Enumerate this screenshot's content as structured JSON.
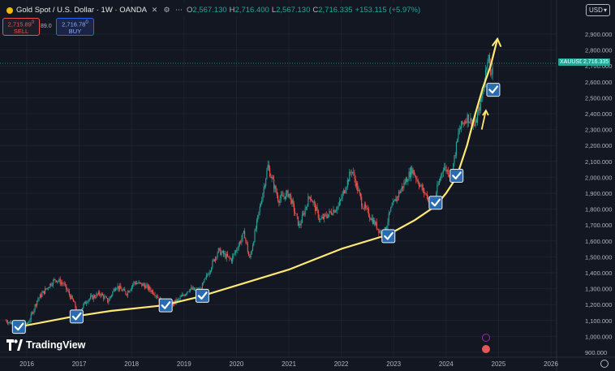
{
  "header": {
    "symbol_title": "Gold Spot / U.S. Dollar · 1W · OANDA",
    "open_label": "O",
    "open_value": "2,567.130",
    "high_label": "H",
    "high_value": "2,716.400",
    "low_label": "L",
    "low_value": "2,567.130",
    "close_label": "C",
    "close_value": "2,716.335",
    "change_value": "+153.115 (+5.97%)"
  },
  "trade": {
    "sell_price": "2,715.89",
    "sell_sup": "0",
    "sell_label": "SELL",
    "spread": "89.0",
    "buy_price": "2,716.78",
    "buy_sup": "0",
    "buy_label": "BUY"
  },
  "currency_button": "USD",
  "last_price": "2,716.335",
  "symbol_tag": "XAUUSD",
  "logo_text": "TradingView",
  "colors": {
    "background": "#131722",
    "up": "#26a69a",
    "down": "#ef5350",
    "trendline": "#ffe873",
    "checkbox": "#2b6cb0"
  },
  "chart_data": {
    "type": "candlestick",
    "interval": "1W",
    "ylim": [
      880,
      2920
    ],
    "y_ticks": [
      900,
      1000,
      1100,
      1200,
      1300,
      1400,
      1500,
      1600,
      1700,
      1800,
      1900,
      2000,
      2100,
      2200,
      2300,
      2400,
      2500,
      2600,
      2700,
      2800,
      2900
    ],
    "y_tick_labels": [
      "900.000",
      "1,000.000",
      "1,100.000",
      "1,200.000",
      "1,300.000",
      "1,400.000",
      "1,500.000",
      "1,600.000",
      "1,700.000",
      "1,800.000",
      "1,900.000",
      "2,000.000",
      "2,100.000",
      "2,200.000",
      "2,300.000",
      "2,400.000",
      "2,500.000",
      "2,600.000",
      "2,700.000",
      "2,800.000",
      "2,900.000"
    ],
    "x_ticks": [
      "2016",
      "2017",
      "2018",
      "2019",
      "2020",
      "2021",
      "2022",
      "2023",
      "2024",
      "2025",
      "2026"
    ],
    "xlim": [
      2015.6,
      2026.8
    ],
    "price_path": [
      [
        2015.6,
        1100
      ],
      [
        2015.8,
        1070
      ],
      [
        2015.95,
        1055
      ],
      [
        2016.05,
        1100
      ],
      [
        2016.2,
        1230
      ],
      [
        2016.45,
        1330
      ],
      [
        2016.55,
        1360
      ],
      [
        2016.7,
        1330
      ],
      [
        2016.9,
        1210
      ],
      [
        2016.97,
        1140
      ],
      [
        2017.15,
        1230
      ],
      [
        2017.4,
        1270
      ],
      [
        2017.55,
        1220
      ],
      [
        2017.7,
        1320
      ],
      [
        2017.9,
        1270
      ],
      [
        2018.05,
        1340
      ],
      [
        2018.25,
        1320
      ],
      [
        2018.45,
        1270
      ],
      [
        2018.65,
        1180
      ],
      [
        2018.9,
        1230
      ],
      [
        2019.1,
        1300
      ],
      [
        2019.3,
        1280
      ],
      [
        2019.45,
        1390
      ],
      [
        2019.65,
        1540
      ],
      [
        2019.9,
        1480
      ],
      [
        2020.15,
        1650
      ],
      [
        2020.25,
        1480
      ],
      [
        2020.4,
        1730
      ],
      [
        2020.6,
        2070
      ],
      [
        2020.8,
        1860
      ],
      [
        2021.0,
        1900
      ],
      [
        2021.2,
        1690
      ],
      [
        2021.4,
        1890
      ],
      [
        2021.6,
        1730
      ],
      [
        2021.8,
        1780
      ],
      [
        2021.95,
        1820
      ],
      [
        2022.2,
        2050
      ],
      [
        2022.4,
        1830
      ],
      [
        2022.6,
        1730
      ],
      [
        2022.8,
        1630
      ],
      [
        2022.95,
        1800
      ],
      [
        2023.1,
        1900
      ],
      [
        2023.35,
        2050
      ],
      [
        2023.55,
        1920
      ],
      [
        2023.75,
        1830
      ],
      [
        2023.95,
        2070
      ],
      [
        2024.1,
        2010
      ],
      [
        2024.25,
        2300
      ],
      [
        2024.4,
        2380
      ],
      [
        2024.55,
        2320
      ],
      [
        2024.7,
        2530
      ],
      [
        2024.8,
        2780
      ],
      [
        2024.85,
        2650
      ],
      [
        2024.9,
        2716
      ]
    ],
    "trendline": [
      [
        2015.85,
        1060
      ],
      [
        2016.8,
        1120
      ],
      [
        2017.6,
        1160
      ],
      [
        2018.6,
        1195
      ],
      [
        2019.3,
        1250
      ],
      [
        2020.0,
        1320
      ],
      [
        2021.0,
        1420
      ],
      [
        2022.0,
        1550
      ],
      [
        2022.9,
        1640
      ],
      [
        2023.4,
        1730
      ],
      [
        2023.8,
        1820
      ],
      [
        2024.0,
        1900
      ],
      [
        2024.2,
        2000
      ],
      [
        2024.4,
        2200
      ],
      [
        2024.55,
        2390
      ],
      [
        2024.7,
        2560
      ],
      [
        2024.85,
        2700
      ],
      [
        2024.98,
        2870
      ]
    ],
    "trendline_arrow_small": [
      [
        2024.68,
        2300
      ],
      [
        2024.76,
        2420
      ]
    ],
    "checkmarks": [
      [
        2015.85,
        1060
      ],
      [
        2016.95,
        1125
      ],
      [
        2018.65,
        1195
      ],
      [
        2019.35,
        1255
      ],
      [
        2022.9,
        1630
      ],
      [
        2023.8,
        1840
      ],
      [
        2024.2,
        2010
      ],
      [
        2024.9,
        2550
      ]
    ]
  }
}
